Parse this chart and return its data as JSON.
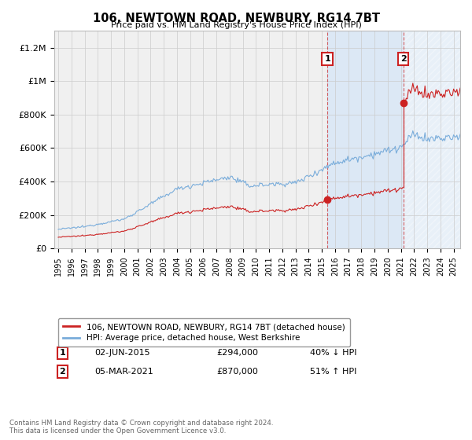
{
  "title": "106, NEWTOWN ROAD, NEWBURY, RG14 7BT",
  "subtitle": "Price paid vs. HM Land Registry's House Price Index (HPI)",
  "ylim": [
    0,
    1300000
  ],
  "xlim_start": 1994.7,
  "xlim_end": 2025.5,
  "background_color": "#ffffff",
  "plot_bg_color": "#f0f0f0",
  "shaded_region_color": "#dce8f5",
  "grid_color": "#cccccc",
  "hpi_line_color": "#7aaddb",
  "price_line_color": "#cc2222",
  "transaction1_date": 2015.42,
  "transaction2_date": 2021.18,
  "transaction1_price": 294000,
  "transaction2_price": 870000,
  "transaction1_label": "02-JUN-2015",
  "transaction1_pct": "40% ↓ HPI",
  "transaction2_label": "05-MAR-2021",
  "transaction2_pct": "51% ↑ HPI",
  "legend_label1": "106, NEWTOWN ROAD, NEWBURY, RG14 7BT (detached house)",
  "legend_label2": "HPI: Average price, detached house, West Berkshire",
  "footer": "Contains HM Land Registry data © Crown copyright and database right 2024.\nThis data is licensed under the Open Government Licence v3.0.",
  "yticks": [
    0,
    200000,
    400000,
    600000,
    800000,
    1000000,
    1200000
  ],
  "ytick_labels": [
    "£0",
    "£200K",
    "£400K",
    "£600K",
    "£800K",
    "£1M",
    "£1.2M"
  ],
  "xtick_years": [
    1995,
    1996,
    1997,
    1998,
    1999,
    2000,
    2001,
    2002,
    2003,
    2004,
    2005,
    2006,
    2007,
    2008,
    2009,
    2010,
    2011,
    2012,
    2013,
    2014,
    2015,
    2016,
    2017,
    2018,
    2019,
    2020,
    2021,
    2022,
    2023,
    2024,
    2025
  ]
}
